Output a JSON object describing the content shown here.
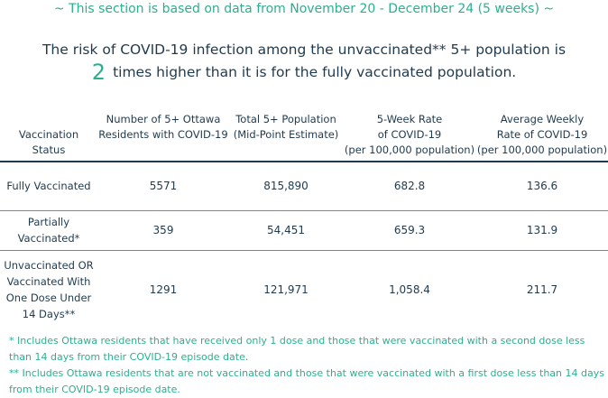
{
  "period_note": "~ This section is based on data from November 20 - December 24 (5 weeks) ~",
  "risk": {
    "line1": "The risk of COVID-19 infection among the unvaccinated** 5+ population is",
    "multiplier": "2",
    "line2": "times higher than it is for the fully vaccinated population."
  },
  "table": {
    "headers": [
      [
        "Vaccination",
        "Status"
      ],
      [
        "Number of 5+ Ottawa",
        "Residents with COVID-19"
      ],
      [
        "Total 5+ Population",
        "(Mid-Point Estimate)"
      ],
      [
        "5-Week Rate",
        "of COVID-19",
        "(per 100,000 population)"
      ],
      [
        "Average Weekly",
        "Rate of COVID-19",
        "(per 100,000 population)"
      ]
    ],
    "rows": [
      {
        "status": [
          "Fully Vaccinated"
        ],
        "cases": "5571",
        "population": "815,890",
        "rate5wk": "682.8",
        "weekly": "136.6"
      },
      {
        "status": [
          "Partially",
          "Vaccinated*"
        ],
        "cases": "359",
        "population": "54,451",
        "rate5wk": "659.3",
        "weekly": "131.9"
      },
      {
        "status": [
          "Unvaccinated OR",
          "Vaccinated With",
          "One Dose Under",
          "14 Days**"
        ],
        "cases": "1291",
        "population": "121,971",
        "rate5wk": "1,058.4",
        "weekly": "211.7"
      }
    ]
  },
  "footnotes": [
    "* Includes Ottawa residents that have received only 1 dose and those that were vaccinated with a second dose less than 14 days from their COVID-19 episode date.",
    "** Includes Ottawa residents that are not vaccinated and those that were vaccinated with a first dose less than 14 days from their COVID-19 episode date."
  ]
}
